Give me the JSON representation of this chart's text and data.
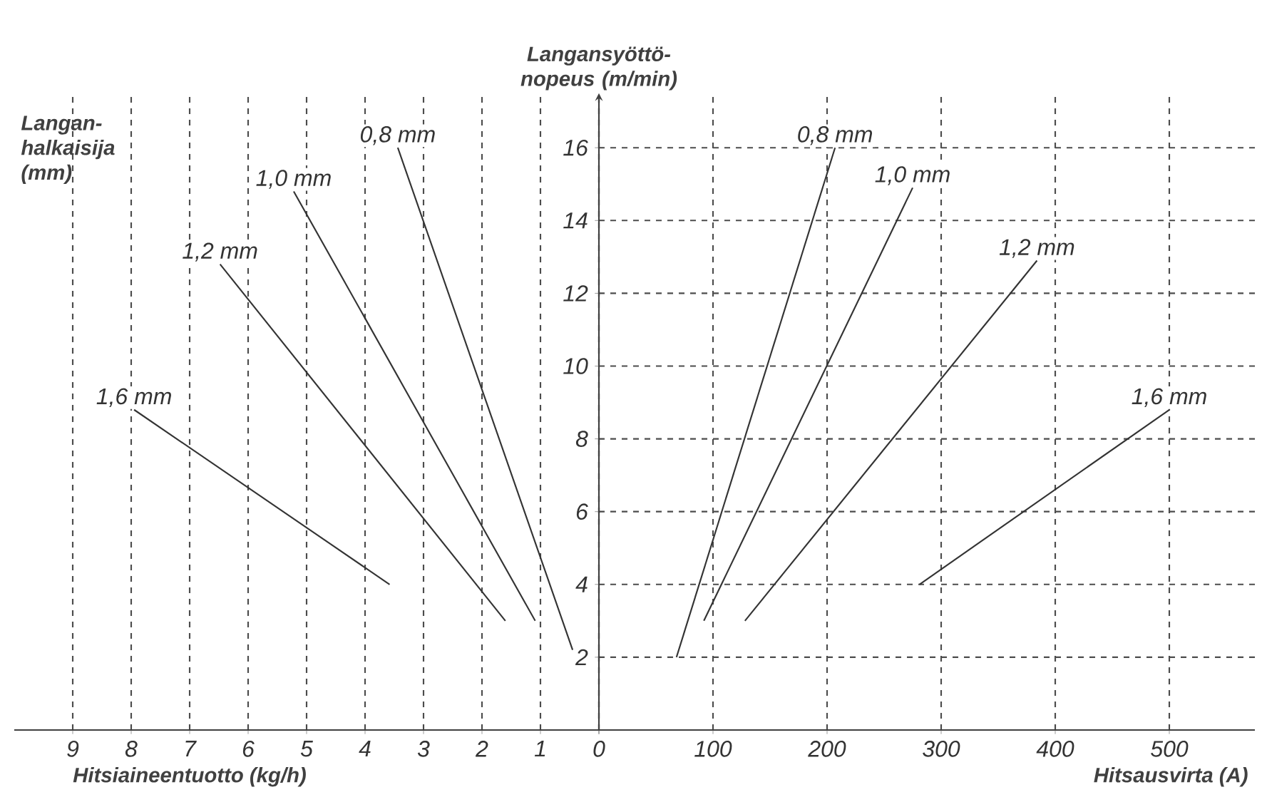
{
  "chart_data": [
    {
      "type": "line",
      "xlabel": "Hitsiaineentuotto (kg/h)",
      "legend_title": "Langan-halkaisija (mm)",
      "xlim": [
        10,
        0
      ],
      "ylim": [
        0,
        17.5
      ],
      "xticks": [
        9,
        8,
        7,
        6,
        5,
        4,
        3,
        2,
        1,
        0
      ],
      "yticks": [
        2,
        4,
        6,
        8,
        10,
        12,
        14,
        16
      ],
      "grid": true,
      "tick_labels": "x",
      "marker": "none",
      "line_style": "solid",
      "series": [
        {
          "name": "0,8 mm",
          "color": "#333333",
          "x": [
            0.45,
            3.44
          ],
          "values": [
            2.2,
            16
          ]
        },
        {
          "name": "1,0 mm",
          "color": "#333333",
          "x": [
            1.09,
            5.22
          ],
          "values": [
            3.0,
            14.8
          ]
        },
        {
          "name": "1,2 mm",
          "color": "#333333",
          "x": [
            1.6,
            6.48
          ],
          "values": [
            3.0,
            12.8
          ]
        },
        {
          "name": "1,6 mm",
          "color": "#333333",
          "x": [
            3.58,
            7.95
          ],
          "values": [
            4.0,
            8.8
          ]
        }
      ]
    },
    {
      "type": "line",
      "xlabel": "Hitsausvirta (A)",
      "ylabel": "Langansyöttö-nopeus (m/min)",
      "xlim": [
        0,
        575
      ],
      "ylim": [
        0,
        17.5
      ],
      "xticks": [
        {
          "value": 0,
          "label": null
        },
        100,
        200,
        300,
        400,
        500
      ],
      "yticks": [
        2,
        4,
        6,
        8,
        10,
        12,
        14,
        16
      ],
      "grid": true,
      "marker": "none",
      "line_style": "solid",
      "series": [
        {
          "name": "0,8 mm",
          "color": "#333333",
          "x": [
            68,
            207
          ],
          "values": [
            2,
            16
          ]
        },
        {
          "name": "1,0 mm",
          "color": "#333333",
          "x": [
            92,
            275
          ],
          "values": [
            3.0,
            14.9
          ]
        },
        {
          "name": "1,2 mm",
          "color": "#333333",
          "x": [
            128,
            384
          ],
          "values": [
            3.0,
            12.9
          ]
        },
        {
          "name": "1,6 mm",
          "color": "#333333",
          "x": [
            281,
            500
          ],
          "values": [
            4.0,
            8.8
          ]
        }
      ]
    }
  ]
}
